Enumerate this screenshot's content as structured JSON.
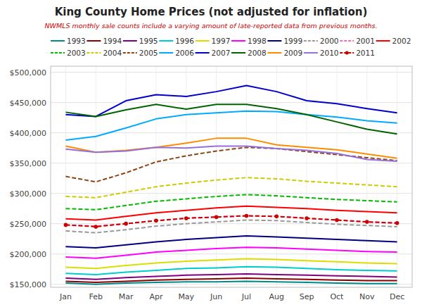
{
  "chart_data": {
    "type": "line",
    "title": "King County Home Prices (not adjusted for inflation)",
    "subtitle": "NWMLS monthly sale counts include a varying amount of late-reported data from previous months.",
    "categories": [
      "Jan",
      "Feb",
      "Mar",
      "Apr",
      "May",
      "Jun",
      "Jul",
      "Aug",
      "Sep",
      "Oct",
      "Nov",
      "Dec"
    ],
    "ylim": [
      145000,
      510000
    ],
    "yticks": [
      {
        "value": 150000,
        "label": "$150,000"
      },
      {
        "value": 200000,
        "label": "$200,000"
      },
      {
        "value": 250000,
        "label": "$250,000"
      },
      {
        "value": 300000,
        "label": "$300,000"
      },
      {
        "value": 350000,
        "label": "$350,000"
      },
      {
        "value": 400000,
        "label": "$400,000"
      },
      {
        "value": 450000,
        "label": "$450,000"
      },
      {
        "value": 500000,
        "label": "$500,000"
      }
    ],
    "grid": true,
    "legend": "top",
    "series": [
      {
        "name": "1993",
        "color": "#008B8B",
        "line_style": "solid",
        "values": [
          152000,
          150000,
          152000,
          153000,
          154000,
          154000,
          155000,
          154000,
          153000,
          152000,
          151000,
          151000
        ]
      },
      {
        "name": "1994",
        "color": "#8B0000",
        "line_style": "solid",
        "values": [
          155000,
          153000,
          155000,
          157000,
          158000,
          159000,
          160000,
          159000,
          158000,
          157000,
          156000,
          156000
        ]
      },
      {
        "name": "1995",
        "color": "#800080",
        "line_style": "solid",
        "values": [
          160000,
          158000,
          161000,
          163000,
          165000,
          166000,
          167000,
          166000,
          165000,
          164000,
          163000,
          162000
        ]
      },
      {
        "name": "1996",
        "color": "#00CCCC",
        "line_style": "solid",
        "values": [
          168000,
          166000,
          170000,
          173000,
          176000,
          177000,
          179000,
          178000,
          176000,
          174000,
          173000,
          172000
        ]
      },
      {
        "name": "1997",
        "color": "#DDDD00",
        "line_style": "solid",
        "values": [
          178000,
          176000,
          181000,
          185000,
          188000,
          190000,
          192000,
          191000,
          189000,
          187000,
          185000,
          184000
        ]
      },
      {
        "name": "1998",
        "color": "#FF00FF",
        "line_style": "solid",
        "values": [
          195000,
          193000,
          198000,
          203000,
          206000,
          209000,
          211000,
          210000,
          208000,
          206000,
          204000,
          203000
        ]
      },
      {
        "name": "1999",
        "color": "#000080",
        "line_style": "solid",
        "values": [
          212000,
          210000,
          215000,
          220000,
          224000,
          227000,
          230000,
          228000,
          226000,
          224000,
          222000,
          220000
        ]
      },
      {
        "name": "2000",
        "color": "#999999",
        "line_style": "dashed",
        "values": [
          238000,
          235000,
          240000,
          246000,
          250000,
          253000,
          256000,
          255000,
          252000,
          249000,
          247000,
          245000
        ]
      },
      {
        "name": "2001",
        "color": "#FF69B4",
        "line_style": "dashed",
        "values": [
          248000,
          246000,
          250000,
          255000,
          259000,
          261000,
          263000,
          262000,
          259000,
          256000,
          253000,
          251000
        ]
      },
      {
        "name": "2002",
        "color": "#FF0000",
        "line_style": "solid",
        "values": [
          258000,
          256000,
          262000,
          268000,
          272000,
          276000,
          279000,
          277000,
          275000,
          272000,
          270000,
          268000
        ]
      },
      {
        "name": "2003",
        "color": "#00BB00",
        "line_style": "dashed",
        "values": [
          275000,
          273000,
          280000,
          287000,
          291000,
          295000,
          298000,
          296000,
          293000,
          290000,
          288000,
          286000
        ]
      },
      {
        "name": "2004",
        "color": "#CCCC00",
        "line_style": "dashed",
        "values": [
          295000,
          293000,
          302000,
          311000,
          317000,
          322000,
          326000,
          324000,
          320000,
          317000,
          314000,
          311000
        ]
      },
      {
        "name": "2005",
        "color": "#8B4513",
        "line_style": "dashed",
        "values": [
          328000,
          319000,
          334000,
          352000,
          362000,
          370000,
          376000,
          374000,
          369000,
          364000,
          359000,
          354000
        ]
      },
      {
        "name": "2006",
        "color": "#00AAFF",
        "line_style": "solid",
        "values": [
          388000,
          394000,
          408000,
          423000,
          430000,
          433000,
          436000,
          435000,
          430000,
          426000,
          420000,
          416000
        ]
      },
      {
        "name": "2007",
        "color": "#0000CC",
        "line_style": "solid",
        "values": [
          430000,
          427000,
          453000,
          463000,
          460000,
          468000,
          478000,
          468000,
          453000,
          448000,
          440000,
          433000
        ]
      },
      {
        "name": "2008",
        "color": "#006400",
        "line_style": "solid",
        "values": [
          434000,
          427000,
          438000,
          447000,
          439000,
          447000,
          447000,
          440000,
          430000,
          418000,
          406000,
          398000
        ]
      },
      {
        "name": "2009",
        "color": "#FF8C00",
        "line_style": "solid",
        "values": [
          378000,
          368000,
          371000,
          376000,
          383000,
          391000,
          391000,
          380000,
          376000,
          372000,
          365000,
          358000
        ]
      },
      {
        "name": "2010",
        "color": "#9370DB",
        "line_style": "solid",
        "values": [
          373000,
          368000,
          370000,
          376000,
          375000,
          378000,
          378000,
          374000,
          371000,
          366000,
          356000,
          353000
        ]
      },
      {
        "name": "2011",
        "color": "#CC0000",
        "line_style": "dashed",
        "marker": "circle",
        "values": [
          248000,
          245000,
          250000,
          255000,
          259000,
          261000,
          263000,
          262000,
          259000,
          256000,
          253000,
          251000
        ]
      }
    ]
  }
}
